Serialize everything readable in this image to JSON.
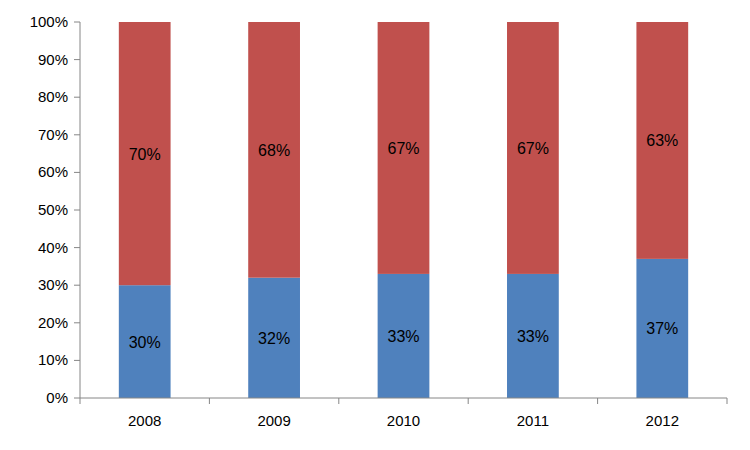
{
  "chart_data": {
    "type": "bar",
    "stacked": true,
    "data_labels": true,
    "grid": false,
    "categories": [
      "2008",
      "2009",
      "2010",
      "2011",
      "2012"
    ],
    "series": [
      {
        "color": "#4f81bd",
        "values": [
          30,
          32,
          33,
          33,
          37
        ],
        "value_labels": [
          "30%",
          "32%",
          "33%",
          "33%",
          "37%"
        ]
      },
      {
        "color": "#c0504d",
        "values": [
          70,
          68,
          67,
          67,
          63
        ],
        "value_labels": [
          "70%",
          "68%",
          "67%",
          "67%",
          "63%"
        ]
      }
    ],
    "ylim": [
      0,
      100
    ],
    "yticks": [
      {
        "value": 0,
        "label": "0%"
      },
      {
        "value": 10,
        "label": "10%"
      },
      {
        "value": 20,
        "label": "20%"
      },
      {
        "value": 30,
        "label": "30%"
      },
      {
        "value": 40,
        "label": "40%"
      },
      {
        "value": 50,
        "label": "50%"
      },
      {
        "value": 60,
        "label": "60%"
      },
      {
        "value": 70,
        "label": "70%"
      },
      {
        "value": 80,
        "label": "80%"
      },
      {
        "value": 90,
        "label": "90%"
      },
      {
        "value": 100,
        "label": "100%"
      }
    ]
  }
}
